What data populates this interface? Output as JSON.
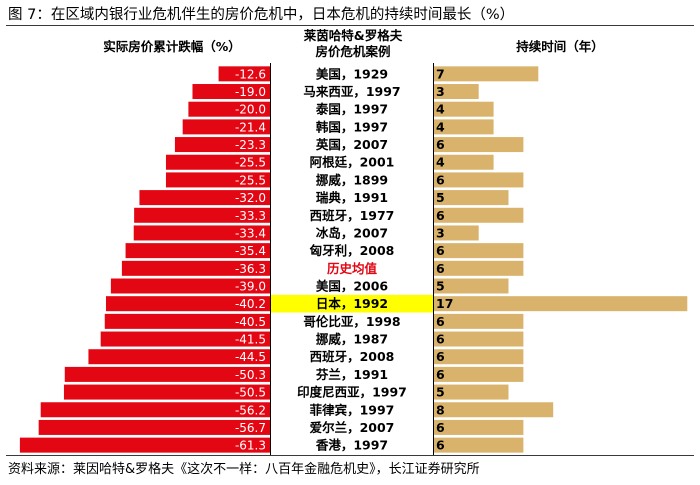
{
  "title": "图 7：在区域内银行业危机伴生的房价危机中，日本危机的持续时间最长（%）",
  "source": "资料来源：莱因哈特&罗格夫《这次不一样：八百年金融危机史》，长江证券研究所",
  "headers": {
    "left": "实际房价累计跌幅（%）",
    "middle_line1": "莱茵哈特&罗格夫",
    "middle_line2": "房价危机案例",
    "right": "持续时间（年）"
  },
  "colors": {
    "decline_bar": "#e30613",
    "duration_bar": "#d9b36b",
    "highlight": "#ffff00",
    "average_label": "#e30613",
    "decline_label": "#ffffff"
  },
  "chart_data": {
    "type": "bar",
    "categories": [
      "美国，1929",
      "马来西亚，1997",
      "泰国，1997",
      "韩国，1997",
      "英国，2007",
      "阿根廷，2001",
      "挪威，1899",
      "瑞典，1991",
      "西班牙，1977",
      "冰岛，2007",
      "匈牙利，2008",
      "历史均值",
      "美国，2006",
      "日本，1992",
      "哥伦比亚，1998",
      "挪威，1987",
      "西班牙，2008",
      "芬兰，1991",
      "印度尼西亚，1997",
      "菲律宾，1997",
      "爱尔兰，2007",
      "香港，1997"
    ],
    "series": [
      {
        "name": "实际房价累计跌幅（%）",
        "values": [
          -12.6,
          -19.0,
          -20.0,
          -21.4,
          -23.3,
          -25.5,
          -25.5,
          -32.0,
          -33.3,
          -33.4,
          -35.4,
          -36.3,
          -39.0,
          -40.2,
          -40.5,
          -41.5,
          -44.5,
          -50.3,
          -50.5,
          -56.2,
          -56.7,
          -61.3
        ]
      },
      {
        "name": "持续时间（年）",
        "values": [
          7,
          3,
          4,
          4,
          6,
          4,
          6,
          5,
          6,
          3,
          6,
          6,
          5,
          17,
          6,
          6,
          6,
          6,
          5,
          8,
          6,
          6
        ]
      }
    ],
    "decline_labels": [
      "-12.6",
      "-19.0",
      "-20.0",
      "-21.4",
      "-23.3",
      "-25.5",
      "-25.5",
      "-32.0",
      "-33.3",
      "-33.4",
      "-35.4",
      "-36.3",
      "-39.0",
      "-40.2",
      "-40.5",
      "-41.5",
      "-44.5",
      "-50.3",
      "-50.5",
      "-56.2",
      "-56.7",
      "-61.3"
    ],
    "highlight_category": "日本，1992",
    "average_category": "历史均值",
    "grid": false,
    "legend": "none"
  }
}
